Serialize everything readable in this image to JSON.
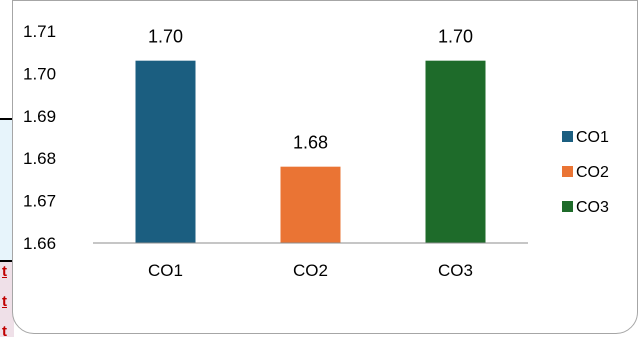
{
  "background": {
    "fragment_glyphs": [
      "t",
      "t",
      "t"
    ]
  },
  "chart_data": {
    "type": "bar",
    "categories": [
      "CO1",
      "CO2",
      "CO3"
    ],
    "values": [
      1.703,
      1.678,
      1.703
    ],
    "data_labels": [
      "1.70",
      "1.68",
      "1.70"
    ],
    "colors": [
      "#1b5e80",
      "#ea7434",
      "#1e6b2a"
    ],
    "ylim": [
      1.66,
      1.71
    ],
    "yticks": [
      1.66,
      1.67,
      1.68,
      1.69,
      1.7,
      1.71
    ],
    "ytick_labels": [
      "1.66",
      "1.67",
      "1.68",
      "1.69",
      "1.70",
      "1.71"
    ],
    "grid": false,
    "legend": {
      "position": "right",
      "entries": [
        "CO1",
        "CO2",
        "CO3"
      ]
    }
  }
}
